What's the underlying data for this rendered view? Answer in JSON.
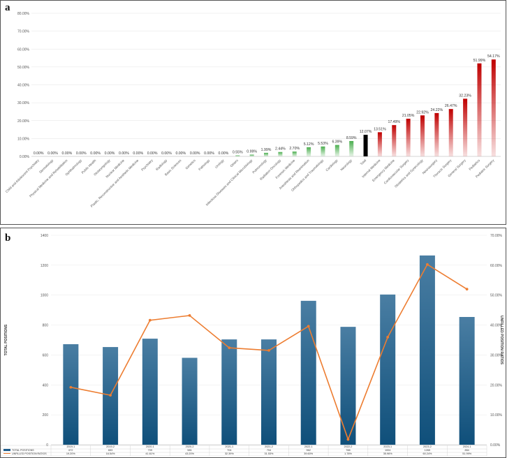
{
  "chart_data": [
    {
      "panel_label": "a",
      "type": "bar",
      "categories": [
        "Child and Adolescent Psychiatry",
        "Dermatology",
        "Physical Medicine and Rehabilitation",
        "Ophthalmology",
        "Public Health",
        "Otolaryngology",
        "Nuclear Medicine",
        "Plastic, Reconstructive and Aesthetic Medicine",
        "Psychiatry",
        "Radiology",
        "Basic Sciences",
        "Genetics",
        "Pathology",
        "Urology",
        "Others",
        "Infectious Diseases and Clinical Microbiology",
        "Pulmonology",
        "Radiation Oncology",
        "Forensic Medicine",
        "Anesthesia and Reanimation",
        "Orthopedics and Traumatology",
        "Cardiology",
        "Neurology",
        "Total",
        "Internal Medicine",
        "Emergency Medicine",
        "Cardiovascular Surgery",
        "Obstetrics and Gynecology",
        "Neurosurgery",
        "Thoracic Surgery",
        "General Surgery",
        "Pediatrics",
        "Pediatric Surgery"
      ],
      "values": [
        0,
        0,
        0,
        0,
        0,
        0,
        0,
        0,
        0,
        0,
        0,
        0,
        0,
        0,
        0.55,
        0.99,
        1.99,
        2.44,
        2.7,
        5.12,
        5.53,
        6.39,
        8.59,
        12.07,
        13.51,
        17.49,
        21.05,
        22.92,
        24.22,
        26.47,
        32.23,
        51.99,
        54.17
      ],
      "value_labels": [
        "0.00%",
        "0.00%",
        "0.00%",
        "0.00%",
        "0.00%",
        "0.00%",
        "0.00%",
        "0.00%",
        "0.00%",
        "0.00%",
        "0.00%",
        "0.00%",
        "0.00%",
        "0.00%",
        "0.55%",
        "0.99%",
        "1.99%",
        "2.44%",
        "2.70%",
        "5.12%",
        "5.53%",
        "6.39%",
        "8.59%",
        "12.07%",
        "13.51%",
        "17.49%",
        "21.05%",
        "22.92%",
        "24.22%",
        "26.47%",
        "32.23%",
        "51.99%",
        "54.17%"
      ],
      "ylim": [
        0,
        80
      ],
      "yticks": [
        "0.00%",
        "10.00%",
        "20.00%",
        "30.00%",
        "40.00%",
        "50.00%",
        "60.00%",
        "70.00%",
        "80.00%"
      ],
      "colors": {
        "below_total": "#4caf50",
        "total": "#000000",
        "above_total": "#c00000"
      }
    },
    {
      "panel_label": "b",
      "type": "bar",
      "categories": [
        "2019-1",
        "2019-2",
        "2020-1",
        "2020-2",
        "2021-1",
        "2021-2",
        "2022-1",
        "2022-2",
        "2023-1",
        "2023-2",
        "2024-1"
      ],
      "series": [
        {
          "name": "TOTAL POSITIONS",
          "type": "bar",
          "values": [
            672,
            653,
            709,
            581,
            704,
            704,
            962,
            788,
            1004,
            1265,
            854
          ],
          "value_labels": [
            "672",
            "653",
            "709",
            "581",
            "704",
            "704",
            "962",
            "788",
            "1004",
            "1265",
            "854"
          ],
          "color": "#1f5c8b"
        },
        {
          "name": "UNFILLED POSITION RATIOS",
          "type": "line",
          "values": [
            19.2,
            16.54,
            41.61,
            43.2,
            32.39,
            31.53,
            39.6,
            1.78,
            35.96,
            60.24,
            51.99
          ],
          "value_labels": [
            "19.20%",
            "16.54%",
            "41.61%",
            "43.20%",
            "32.39%",
            "31.53%",
            "39.60%",
            "1.78%",
            "35.96%",
            "60.24%",
            "51.99%"
          ],
          "color": "#ed7d31"
        }
      ],
      "ylabel": "TOTAL POSITIONS",
      "y2label": "UNFILLED POSITION RATIOS",
      "ylim": [
        0,
        1400
      ],
      "y2lim": [
        0,
        70
      ],
      "yticks": [
        "0",
        "200",
        "400",
        "600",
        "800",
        "1000",
        "1200",
        "1400"
      ],
      "y2ticks": [
        "0.00%",
        "10.00%",
        "20.00%",
        "30.00%",
        "40.00%",
        "50.00%",
        "60.00%",
        "70.00%"
      ]
    }
  ]
}
